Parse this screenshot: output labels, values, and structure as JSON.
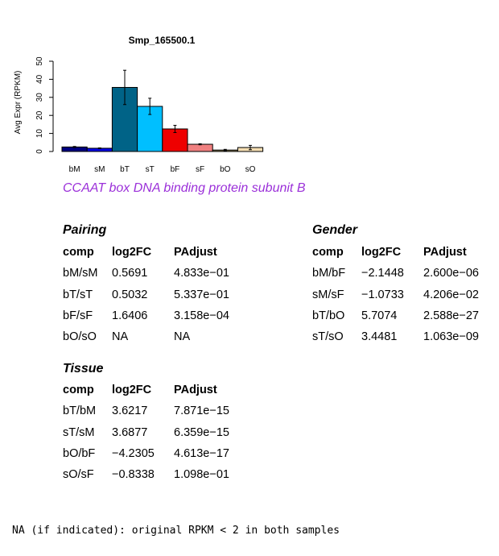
{
  "chart_data": {
    "type": "bar",
    "title": "Smp_165500.1",
    "ylabel": "Avg Expr (RPKM)",
    "xlabel": "",
    "ylim": [
      0,
      50
    ],
    "yticks": [
      0,
      10,
      20,
      30,
      40,
      50
    ],
    "categories": [
      "bM",
      "sM",
      "bT",
      "sT",
      "bF",
      "sF",
      "bO",
      "sO"
    ],
    "values": [
      2.5,
      1.8,
      35.5,
      25.0,
      12.5,
      4.0,
      0.8,
      2.2
    ],
    "errors": [
      0.3,
      0.2,
      9.5,
      4.5,
      2.0,
      0.3,
      0.4,
      1.2
    ],
    "colors": [
      "#00007f",
      "#0000e6",
      "#006387",
      "#00bfff",
      "#ee0000",
      "#f08080",
      "#8b7e55",
      "#f5deb3"
    ]
  },
  "description": "CCAAT box DNA binding protein subunit B",
  "description_color": "#9b30d9",
  "pairing": {
    "title": "Pairing",
    "headers": [
      "comp",
      "log2FC",
      "PAdjust"
    ],
    "rows": [
      [
        "bM/sM",
        "0.5691",
        "4.833e−01"
      ],
      [
        "bT/sT",
        "0.5032",
        "5.337e−01"
      ],
      [
        "bF/sF",
        "1.6406",
        "3.158e−04"
      ],
      [
        "bO/sO",
        "NA",
        "NA"
      ]
    ]
  },
  "gender": {
    "title": "Gender",
    "headers": [
      "comp",
      "log2FC",
      "PAdjust"
    ],
    "rows": [
      [
        "bM/bF",
        "−2.1448",
        "2.600e−06"
      ],
      [
        "sM/sF",
        "−1.0733",
        "4.206e−02"
      ],
      [
        "bT/bO",
        "5.7074",
        "2.588e−27"
      ],
      [
        "sT/sO",
        "3.4481",
        "1.063e−09"
      ]
    ]
  },
  "tissue": {
    "title": "Tissue",
    "headers": [
      "comp",
      "log2FC",
      "PAdjust"
    ],
    "rows": [
      [
        "bT/bM",
        "3.6217",
        "7.871e−15"
      ],
      [
        "sT/sM",
        "3.6877",
        "6.359e−15"
      ],
      [
        "bO/bF",
        "−4.2305",
        "4.613e−17"
      ],
      [
        "sO/sF",
        "−0.8338",
        "1.098e−01"
      ]
    ]
  },
  "footnote": "NA (if indicated): original RPKM < 2 in both samples"
}
